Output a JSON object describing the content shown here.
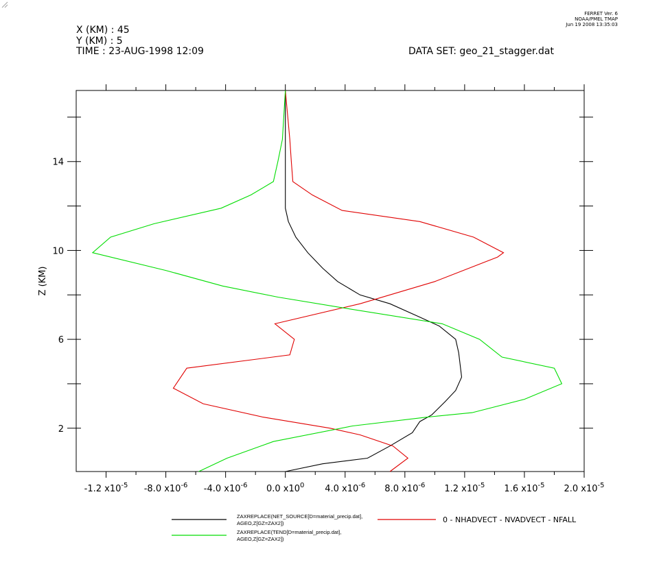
{
  "header": {
    "x_line": "X (KM) : 45",
    "y_line": "Y (KM) : 5",
    "time_line": "TIME : 23-AUG-1998 12:09",
    "dataset_line": "DATA SET: geo_21_stagger.dat",
    "stamp": [
      "FERRET Ver. 6",
      "NOAA/PMEL TMAP",
      "Jun 19 2008 13:35:03"
    ]
  },
  "chart_data": {
    "type": "line",
    "title": "",
    "xlabel": "",
    "ylabel": "Z (KM)",
    "xlim": [
      -1.4e-05,
      2e-05
    ],
    "ylim": [
      0.05,
      17.2
    ],
    "xticks": [
      {
        "value": -1.2e-05,
        "mant": "-1.2 x10",
        "exp": "-5"
      },
      {
        "value": -8e-06,
        "mant": "-8.0 x10",
        "exp": "-6"
      },
      {
        "value": -4e-06,
        "mant": "-4.0 x10",
        "exp": "-6"
      },
      {
        "value": 0,
        "mant": "0.0 x10",
        "exp": "0"
      },
      {
        "value": 4e-06,
        "mant": "4.0 x10",
        "exp": "-6"
      },
      {
        "value": 8e-06,
        "mant": "8.0 x10",
        "exp": "-6"
      },
      {
        "value": 1.2e-05,
        "mant": "1.2 x10",
        "exp": "-5"
      },
      {
        "value": 1.6e-05,
        "mant": "1.6 x10",
        "exp": "-5"
      },
      {
        "value": 2e-05,
        "mant": "2.0 x10",
        "exp": "-5"
      }
    ],
    "yticks": [
      2,
      6,
      10,
      14
    ],
    "series": [
      {
        "name": "ZAXREPLACE(NET_SOURCE[D=material_precip.dat], AGEO,Z[GZ=ZAX2])",
        "legend_lines": [
          "ZAXREPLACE(NET_SOURCE[D=material_precip.dat],",
          "AGEO,Z[GZ=ZAX2])"
        ],
        "color": "#000000",
        "points": [
          [
            0.0,
            0.05
          ],
          [
            2.5e-06,
            0.4
          ],
          [
            5.5e-06,
            0.65
          ],
          [
            7e-06,
            1.2
          ],
          [
            8.5e-06,
            1.8
          ],
          [
            9e-06,
            2.3
          ],
          [
            9.8e-06,
            2.6
          ],
          [
            1.07e-05,
            3.2
          ],
          [
            1.14e-05,
            3.7
          ],
          [
            1.18e-05,
            4.3
          ],
          [
            1.16e-05,
            5.4
          ],
          [
            1.14e-05,
            6.0
          ],
          [
            1.03e-05,
            6.6
          ],
          [
            9e-06,
            7.0
          ],
          [
            7e-06,
            7.6
          ],
          [
            5e-06,
            8.0
          ],
          [
            3.5e-06,
            8.6
          ],
          [
            2.5e-06,
            9.2
          ],
          [
            1.5e-06,
            9.9
          ],
          [
            7e-07,
            10.6
          ],
          [
            2e-07,
            11.3
          ],
          [
            0.0,
            11.9
          ],
          [
            0.0,
            12.7
          ],
          [
            0.0,
            13.5
          ],
          [
            0.0,
            14.5
          ],
          [
            0.0,
            15.6
          ],
          [
            0.0,
            16.8
          ],
          [
            0.0,
            17.2
          ]
        ]
      },
      {
        "name": "0 - NHADVECT - NVADVECT - NFALL",
        "legend_lines": [
          "0 - NHADVECT - NVADVECT - NFALL"
        ],
        "color": "#e00000",
        "points": [
          [
            7e-06,
            0.05
          ],
          [
            8.2e-06,
            0.65
          ],
          [
            7.2e-06,
            1.2
          ],
          [
            5e-06,
            1.7
          ],
          [
            3e-06,
            2.0
          ],
          [
            -1.5e-06,
            2.5
          ],
          [
            -5.5e-06,
            3.1
          ],
          [
            -7.5e-06,
            3.8
          ],
          [
            -6.6e-06,
            4.7
          ],
          [
            3e-07,
            5.3
          ],
          [
            6e-07,
            6.0
          ],
          [
            -7e-07,
            6.7
          ],
          [
            5e-06,
            7.6
          ],
          [
            1e-05,
            8.6
          ],
          [
            1.42e-05,
            9.7
          ],
          [
            1.46e-05,
            9.9
          ],
          [
            1.26e-05,
            10.6
          ],
          [
            9e-06,
            11.3
          ],
          [
            3.8e-06,
            11.8
          ],
          [
            1.8e-06,
            12.5
          ],
          [
            5e-07,
            13.1
          ],
          [
            4e-07,
            14.0
          ],
          [
            3e-07,
            15.0
          ],
          [
            0.0,
            17.2
          ]
        ]
      },
      {
        "name": "ZAXREPLACE(TEND[D=material_precip.dat], AGEO,Z[GZ=ZAX2])",
        "legend_lines": [
          "ZAXREPLACE(TEND[D=material_precip.dat],",
          "AGEO,Z[GZ=ZAX2])"
        ],
        "color": "#00dd00",
        "points": [
          [
            -5.8e-06,
            0.05
          ],
          [
            -3.9e-06,
            0.65
          ],
          [
            -8e-07,
            1.4
          ],
          [
            4.5e-06,
            2.1
          ],
          [
            9.5e-06,
            2.5
          ],
          [
            1.25e-05,
            2.7
          ],
          [
            1.6e-05,
            3.3
          ],
          [
            1.85e-05,
            4.0
          ],
          [
            1.8e-05,
            4.7
          ],
          [
            1.45e-05,
            5.2
          ],
          [
            1.3e-05,
            6.0
          ],
          [
            1.05e-05,
            6.7
          ],
          [
            4e-06,
            7.4
          ],
          [
            -5e-07,
            7.9
          ],
          [
            -4.2e-06,
            8.4
          ],
          [
            -8e-06,
            9.1
          ],
          [
            -1.29e-05,
            9.9
          ],
          [
            -1.17e-05,
            10.6
          ],
          [
            -8.8e-06,
            11.2
          ],
          [
            -4.3e-06,
            11.9
          ],
          [
            -2.3e-06,
            12.5
          ],
          [
            -8e-07,
            13.1
          ],
          [
            -5e-07,
            14.0
          ],
          [
            -2e-07,
            15.0
          ],
          [
            0.0,
            17.2
          ]
        ]
      }
    ]
  }
}
